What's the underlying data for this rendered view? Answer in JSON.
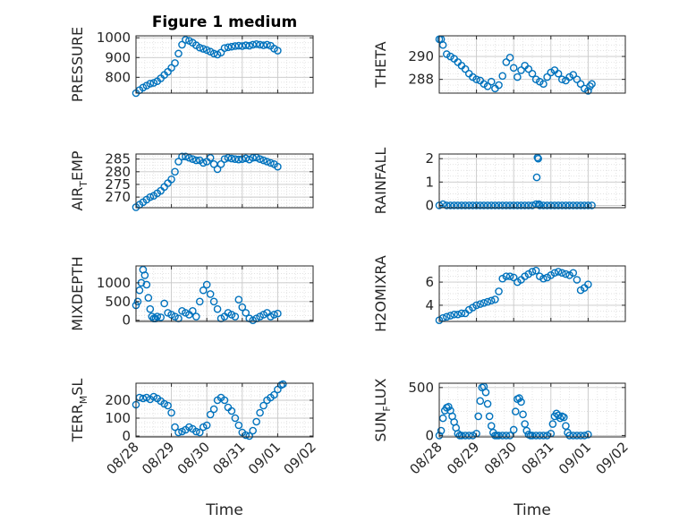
{
  "figure": {
    "title": "Figure 1 medium",
    "marker_color": "#0072BD"
  },
  "chart_data": [
    {
      "type": "scatter",
      "panel": "pressure",
      "ylabel": "PRESSURE",
      "xlabel": "",
      "xlim": [
        "08/28",
        "09/02"
      ],
      "ylim": [
        720,
        1010
      ],
      "yticks": [
        800,
        900,
        1000
      ],
      "xticks": [
        "08/28",
        "08/29",
        "08/30",
        "08/31",
        "09/01",
        "09/02"
      ],
      "x": [
        0,
        0.1,
        0.2,
        0.3,
        0.4,
        0.5,
        0.6,
        0.7,
        0.8,
        0.9,
        1.0,
        1.1,
        1.2,
        1.3,
        1.4,
        1.5,
        1.6,
        1.7,
        1.8,
        1.9,
        2.0,
        2.1,
        2.2,
        2.3,
        2.4,
        2.5,
        2.6,
        2.7,
        2.8,
        2.9,
        3.0,
        3.1,
        3.2,
        3.3,
        3.4,
        3.5,
        3.6,
        3.7,
        3.8,
        3.9,
        4.0
      ],
      "y": [
        720,
        735,
        748,
        758,
        768,
        772,
        780,
        795,
        812,
        828,
        848,
        872,
        920,
        965,
        990,
        985,
        975,
        962,
        950,
        944,
        938,
        930,
        920,
        915,
        925,
        948,
        952,
        955,
        958,
        960,
        958,
        962,
        960,
        965,
        968,
        965,
        962,
        965,
        960,
        945,
        935
      ]
    },
    {
      "type": "scatter",
      "panel": "theta",
      "ylabel": "THETA",
      "xlabel": "",
      "xlim": [
        "08/28",
        "09/02"
      ],
      "ylim": [
        286.8,
        291.8
      ],
      "yticks": [
        288,
        290
      ],
      "xticks": [
        "08/28",
        "08/29",
        "08/30",
        "08/31",
        "09/01",
        "09/02"
      ],
      "x": [
        0,
        0.05,
        0.1,
        0.2,
        0.3,
        0.4,
        0.5,
        0.6,
        0.7,
        0.8,
        0.9,
        1.0,
        1.1,
        1.2,
        1.3,
        1.4,
        1.5,
        1.6,
        1.7,
        1.8,
        1.9,
        2.0,
        2.1,
        2.2,
        2.3,
        2.4,
        2.5,
        2.6,
        2.7,
        2.8,
        2.9,
        3.0,
        3.1,
        3.2,
        3.3,
        3.4,
        3.5,
        3.6,
        3.7,
        3.8,
        3.9,
        4.0,
        4.05,
        4.1
      ],
      "y": [
        291.5,
        291.5,
        291.0,
        290.2,
        290.0,
        289.8,
        289.5,
        289.2,
        288.9,
        288.5,
        288.2,
        288.0,
        287.9,
        287.6,
        287.4,
        287.8,
        287.2,
        287.5,
        288.3,
        289.5,
        289.9,
        289.0,
        288.2,
        288.8,
        289.2,
        288.9,
        288.5,
        288.0,
        287.8,
        287.6,
        288.2,
        288.6,
        288.8,
        288.5,
        288.0,
        287.9,
        288.2,
        288.4,
        288.0,
        287.6,
        287.2,
        287.0,
        287.4,
        287.6
      ]
    },
    {
      "type": "scatter",
      "panel": "air_temp",
      "ylabel": "AIR_TEMP",
      "xlabel": "",
      "xlim": [
        "08/28",
        "09/02"
      ],
      "ylim": [
        265.8,
        287
      ],
      "yticks": [
        270,
        275,
        280,
        285
      ],
      "xticks": [
        "08/28",
        "08/29",
        "08/30",
        "08/31",
        "09/01",
        "09/02"
      ],
      "x": [
        0,
        0.1,
        0.2,
        0.3,
        0.4,
        0.5,
        0.6,
        0.7,
        0.8,
        0.9,
        1.0,
        1.1,
        1.2,
        1.3,
        1.4,
        1.5,
        1.6,
        1.7,
        1.8,
        1.9,
        2.0,
        2.1,
        2.2,
        2.3,
        2.4,
        2.5,
        2.6,
        2.7,
        2.8,
        2.9,
        3.0,
        3.1,
        3.2,
        3.3,
        3.4,
        3.5,
        3.6,
        3.7,
        3.8,
        3.9,
        4.0
      ],
      "y": [
        266.0,
        267.0,
        268.0,
        269.0,
        270.0,
        270.5,
        271.5,
        272.5,
        274.0,
        275.5,
        277.0,
        280.0,
        284.0,
        286.0,
        286.0,
        285.5,
        285.0,
        284.5,
        284.5,
        283.5,
        284.0,
        285.5,
        283.0,
        281.0,
        283.0,
        285.0,
        285.5,
        285.2,
        285.0,
        284.8,
        285.0,
        285.3,
        284.8,
        285.5,
        285.6,
        285.0,
        284.5,
        284.0,
        283.5,
        283.0,
        282.0
      ]
    },
    {
      "type": "scatter",
      "panel": "rainfall",
      "ylabel": "RAINFALL",
      "xlabel": "",
      "xlim": [
        "08/28",
        "09/02"
      ],
      "ylim": [
        -0.1,
        2.2
      ],
      "yticks": [
        0,
        1,
        2
      ],
      "xticks": [
        "08/28",
        "08/29",
        "08/30",
        "08/31",
        "09/01",
        "09/02"
      ],
      "x": [
        0,
        0.1,
        0.2,
        0.3,
        0.4,
        0.5,
        0.6,
        0.7,
        0.8,
        0.9,
        1.0,
        1.1,
        1.2,
        1.3,
        1.4,
        1.5,
        1.6,
        1.7,
        1.8,
        1.9,
        2.0,
        2.1,
        2.2,
        2.3,
        2.4,
        2.5,
        2.6,
        2.62,
        2.64,
        2.66,
        2.68,
        2.7,
        2.8,
        2.9,
        3.0,
        3.1,
        3.2,
        3.3,
        3.4,
        3.5,
        3.6,
        3.7,
        3.8,
        3.9,
        4.0,
        4.1
      ],
      "y": [
        0,
        0.05,
        0,
        0,
        0,
        0,
        0,
        0,
        0,
        0,
        0,
        0,
        0,
        0,
        0,
        0,
        0,
        0,
        0,
        0,
        0,
        0,
        0,
        0,
        0,
        0,
        0.05,
        1.2,
        2.05,
        2.0,
        0.05,
        0,
        0,
        0,
        0,
        0,
        0,
        0,
        0,
        0,
        0,
        0,
        0,
        0,
        0,
        0
      ]
    },
    {
      "type": "scatter",
      "panel": "mixdepth",
      "ylabel": "MIXDEPTH",
      "xlabel": "",
      "xlim": [
        "08/28",
        "09/02"
      ],
      "ylim": [
        -30,
        1450
      ],
      "yticks": [
        0,
        500,
        1000
      ],
      "xticks": [
        "08/28",
        "08/29",
        "08/30",
        "08/31",
        "09/01",
        "09/02"
      ],
      "x": [
        0.0,
        0.05,
        0.1,
        0.15,
        0.2,
        0.25,
        0.3,
        0.35,
        0.4,
        0.45,
        0.5,
        0.55,
        0.6,
        0.7,
        0.8,
        0.9,
        1.0,
        1.1,
        1.2,
        1.3,
        1.4,
        1.5,
        1.6,
        1.7,
        1.8,
        1.9,
        2.0,
        2.1,
        2.2,
        2.3,
        2.4,
        2.5,
        2.6,
        2.7,
        2.8,
        2.9,
        3.0,
        3.1,
        3.2,
        3.3,
        3.4,
        3.5,
        3.6,
        3.7,
        3.8,
        3.9,
        4.0
      ],
      "y": [
        400,
        500,
        800,
        1000,
        1350,
        1200,
        950,
        600,
        300,
        100,
        50,
        50,
        100,
        80,
        450,
        200,
        150,
        100,
        50,
        250,
        200,
        150,
        250,
        100,
        500,
        800,
        950,
        700,
        500,
        300,
        50,
        100,
        200,
        150,
        100,
        550,
        350,
        200,
        50,
        0,
        50,
        100,
        150,
        200,
        100,
        150,
        180
      ]
    },
    {
      "type": "scatter",
      "panel": "h2omixra",
      "ylabel": "H2OMIXRA",
      "xlabel": "",
      "xlim": [
        "08/28",
        "09/02"
      ],
      "ylim": [
        2.6,
        7.4
      ],
      "yticks": [
        4,
        6
      ],
      "xticks": [
        "08/28",
        "08/29",
        "08/30",
        "08/31",
        "09/01",
        "09/02"
      ],
      "x": [
        0,
        0.1,
        0.2,
        0.3,
        0.4,
        0.5,
        0.6,
        0.7,
        0.8,
        0.9,
        1.0,
        1.1,
        1.2,
        1.3,
        1.4,
        1.5,
        1.6,
        1.7,
        1.8,
        1.9,
        2.0,
        2.1,
        2.2,
        2.3,
        2.4,
        2.5,
        2.6,
        2.7,
        2.8,
        2.9,
        3.0,
        3.1,
        3.2,
        3.3,
        3.4,
        3.5,
        3.6,
        3.7,
        3.8,
        3.9,
        4.0
      ],
      "y": [
        2.7,
        2.9,
        3.0,
        3.1,
        3.2,
        3.2,
        3.3,
        3.3,
        3.6,
        3.8,
        4.0,
        4.1,
        4.2,
        4.3,
        4.4,
        4.5,
        5.2,
        6.3,
        6.5,
        6.5,
        6.4,
        6.0,
        6.2,
        6.5,
        6.7,
        6.9,
        7.0,
        6.5,
        6.3,
        6.4,
        6.6,
        6.8,
        6.9,
        6.8,
        6.7,
        6.6,
        6.8,
        6.2,
        5.3,
        5.5,
        5.8
      ]
    },
    {
      "type": "scatter",
      "panel": "terr_msl",
      "ylabel": "TERR_MSL",
      "xlabel": "Time",
      "xlim": [
        "08/28",
        "09/02"
      ],
      "ylim": [
        -5,
        295
      ],
      "yticks": [
        0,
        100,
        200
      ],
      "xticks": [
        "08/28",
        "08/29",
        "08/30",
        "08/31",
        "09/01",
        "09/02"
      ],
      "x": [
        0,
        0.1,
        0.2,
        0.3,
        0.4,
        0.5,
        0.6,
        0.7,
        0.8,
        0.9,
        1.0,
        1.1,
        1.2,
        1.3,
        1.4,
        1.5,
        1.6,
        1.7,
        1.8,
        1.9,
        2.0,
        2.1,
        2.2,
        2.3,
        2.4,
        2.5,
        2.6,
        2.7,
        2.8,
        2.9,
        3.0,
        3.1,
        3.2,
        3.3,
        3.4,
        3.5,
        3.6,
        3.7,
        3.8,
        3.9,
        4.0,
        4.1,
        4.15
      ],
      "y": [
        175,
        215,
        210,
        215,
        205,
        220,
        210,
        195,
        180,
        170,
        130,
        50,
        20,
        25,
        35,
        50,
        40,
        25,
        20,
        50,
        60,
        120,
        150,
        200,
        215,
        200,
        160,
        140,
        100,
        60,
        20,
        5,
        0,
        30,
        80,
        130,
        170,
        200,
        215,
        230,
        260,
        285,
        290
      ]
    },
    {
      "type": "scatter",
      "panel": "sun_flux",
      "ylabel": "SUN_FLUX",
      "xlabel": "Time",
      "xlim": [
        "08/28",
        "09/02"
      ],
      "ylim": [
        -15,
        545
      ],
      "yticks": [
        0,
        500
      ],
      "xticks": [
        "08/28",
        "08/29",
        "08/30",
        "08/31",
        "09/01",
        "09/02"
      ],
      "x": [
        0.0,
        0.05,
        0.1,
        0.15,
        0.2,
        0.25,
        0.3,
        0.35,
        0.4,
        0.45,
        0.5,
        0.55,
        0.6,
        0.7,
        0.8,
        0.9,
        1.0,
        1.05,
        1.1,
        1.15,
        1.2,
        1.25,
        1.3,
        1.35,
        1.4,
        1.45,
        1.5,
        1.55,
        1.6,
        1.7,
        1.8,
        1.9,
        2.0,
        2.05,
        2.1,
        2.15,
        2.2,
        2.25,
        2.3,
        2.35,
        2.4,
        2.45,
        2.5,
        2.6,
        2.7,
        2.8,
        2.9,
        3.0,
        3.05,
        3.1,
        3.15,
        3.2,
        3.25,
        3.3,
        3.35,
        3.4,
        3.45,
        3.5,
        3.6,
        3.7,
        3.8,
        3.9,
        4.0
      ],
      "y": [
        0,
        50,
        180,
        260,
        290,
        300,
        260,
        200,
        140,
        80,
        20,
        0,
        0,
        0,
        0,
        0,
        20,
        200,
        360,
        500,
        510,
        450,
        330,
        200,
        100,
        30,
        0,
        0,
        0,
        0,
        0,
        0,
        60,
        250,
        380,
        390,
        350,
        220,
        120,
        50,
        10,
        0,
        0,
        0,
        0,
        0,
        0,
        20,
        120,
        200,
        230,
        210,
        180,
        200,
        190,
        100,
        30,
        0,
        0,
        0,
        0,
        0,
        10
      ]
    }
  ]
}
